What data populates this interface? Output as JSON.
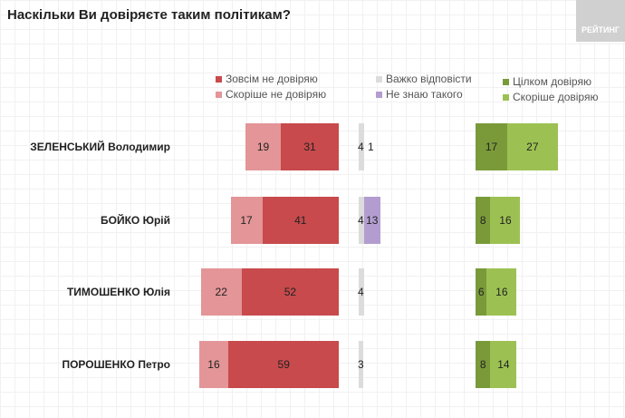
{
  "chart_data": {
    "type": "bar",
    "title": "Наскільки Ви довіряєте таким політикам?",
    "logo": "РЕЙТИНГ",
    "categories": [
      "ЗЕЛЕНСЬКИЙ Володимир",
      "БОЙКО Юрій",
      "ТИМОШЕНКО Юлія",
      "ПОРОШЕНКО Петро"
    ],
    "series": [
      {
        "name": "Скоріше не довіряю",
        "color": "#e39597",
        "values": [
          19,
          17,
          22,
          16
        ]
      },
      {
        "name": "Зовсім не довіряю",
        "color": "#c84a4c",
        "values": [
          31,
          41,
          52,
          59
        ]
      },
      {
        "name": "Важко відповісти",
        "color": "#dcdcdc",
        "values": [
          4,
          4,
          4,
          3
        ]
      },
      {
        "name": "Не знаю такого",
        "color": "#b39dd0",
        "values": [
          1,
          13,
          null,
          null
        ]
      },
      {
        "name": "Цілком довіряю",
        "color": "#7a9a3a",
        "values": [
          17,
          8,
          6,
          8
        ]
      },
      {
        "name": "Скоріше довіряю",
        "color": "#9cc152",
        "values": [
          27,
          16,
          16,
          14
        ]
      }
    ],
    "legend": [
      "Зовсім не довіряю",
      "Скоріше не довіряю",
      "Важко відповісти",
      "Не знаю такого",
      "Цілком довіряю",
      "Скоріше довіряю"
    ]
  }
}
